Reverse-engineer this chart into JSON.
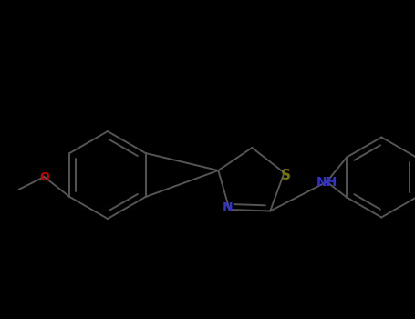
{
  "bg_color": "#000000",
  "bond_color": "#555555",
  "N_color": "#3333CC",
  "S_color": "#777700",
  "O_color": "#CC0000",
  "lw": 1.4,
  "dbo_inner": 0.01,
  "figsize": [
    4.55,
    3.5
  ],
  "dpi": 100,
  "xlim": [
    0,
    455
  ],
  "ylim": [
    0,
    350
  ]
}
